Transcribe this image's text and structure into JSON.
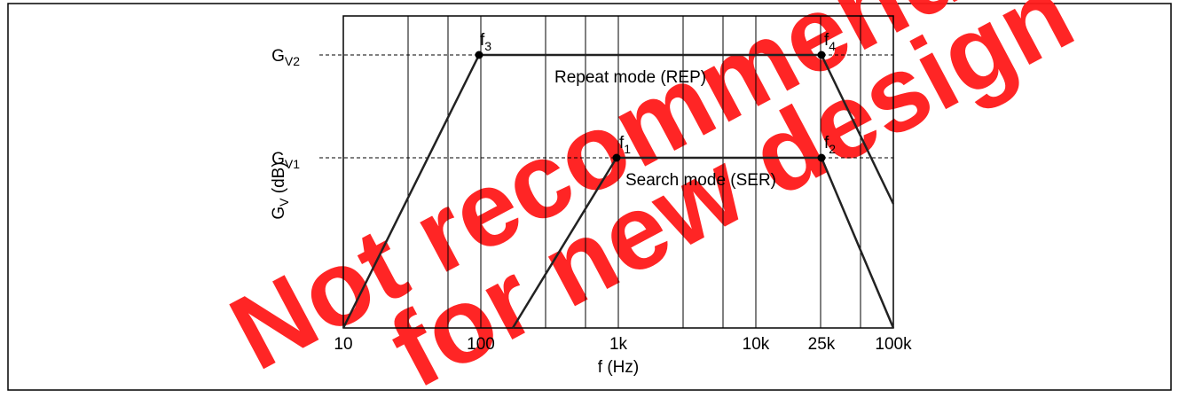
{
  "diagram": {
    "x_ticks": [
      "10",
      "100",
      "1k",
      "10k",
      "25k",
      "100k"
    ],
    "x_axis_title": "f  (Hz)",
    "y_axis_title": {
      "main": "G",
      "sub": "V",
      "rest": "  (dB)"
    },
    "levels": [
      {
        "main": "G",
        "sub": "V2"
      },
      {
        "main": "G",
        "sub": "V1"
      }
    ],
    "points": [
      {
        "main": "f",
        "sub": "3"
      },
      {
        "main": "f",
        "sub": "4"
      },
      {
        "main": "f",
        "sub": "1"
      },
      {
        "main": "f",
        "sub": "2"
      }
    ],
    "curves": [
      "Repeat mode (REP)",
      "Search mode (SER)"
    ],
    "watermark": [
      "Not recommended",
      "for new design"
    ]
  }
}
